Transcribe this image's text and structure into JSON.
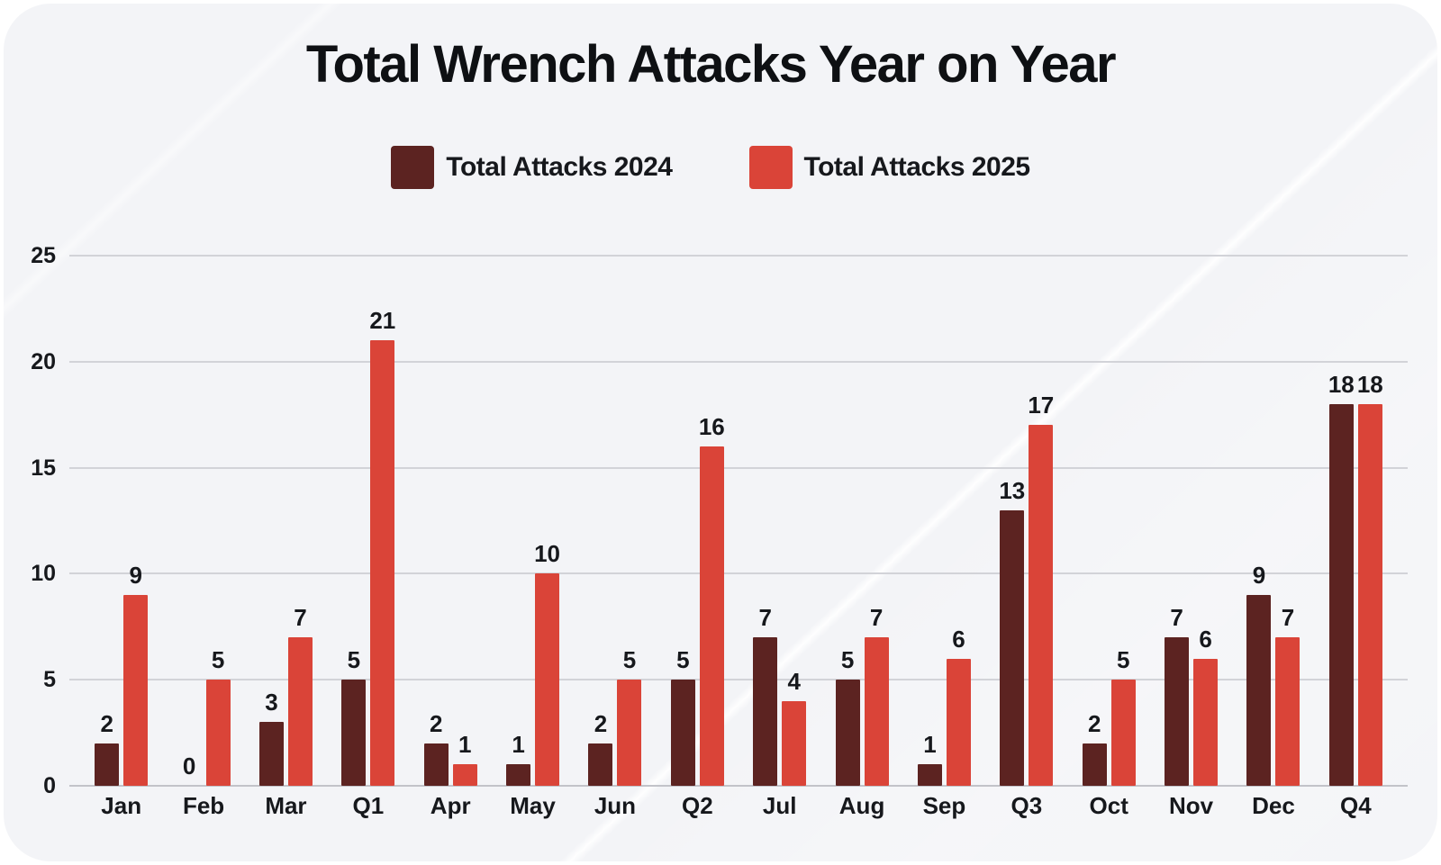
{
  "chart_data": {
    "type": "bar",
    "title": "Total Wrench Attacks Year on Year",
    "categories": [
      "Jan",
      "Feb",
      "Mar",
      "Q1",
      "Apr",
      "May",
      "Jun",
      "Q2",
      "Jul",
      "Aug",
      "Sep",
      "Q3",
      "Oct",
      "Nov",
      "Dec",
      "Q4"
    ],
    "series": [
      {
        "name": "Total Attacks 2024",
        "color": "#5c2321",
        "values": [
          2,
          0,
          3,
          5,
          2,
          1,
          2,
          5,
          7,
          5,
          1,
          13,
          2,
          7,
          9,
          18
        ]
      },
      {
        "name": "Total Attacks 2025",
        "color": "#da4438",
        "values": [
          9,
          5,
          7,
          21,
          1,
          10,
          5,
          16,
          4,
          7,
          6,
          17,
          5,
          6,
          7,
          18
        ]
      }
    ],
    "xlabel": "",
    "ylabel": "",
    "ylim": [
      0,
      25
    ],
    "yticks": [
      0,
      5,
      10,
      15,
      20,
      25
    ],
    "grid": true,
    "legend_position": "top",
    "value_labels": true
  },
  "colors": {
    "card_background": "#f3f4f7",
    "gridline": "#d2d3d8",
    "baseline": "#c2c3c9",
    "text": "#16181c",
    "series_2024": "#5c2321",
    "series_2025": "#da4438"
  }
}
